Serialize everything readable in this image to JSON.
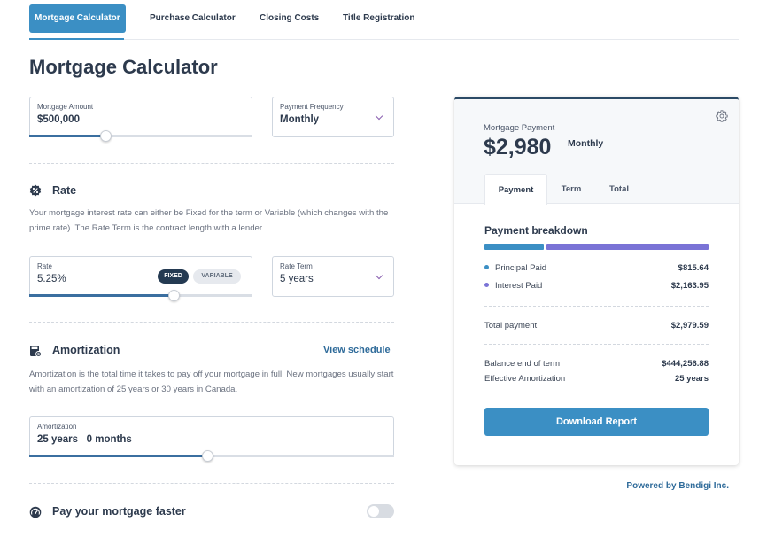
{
  "tabs": [
    "Mortgage Calculator",
    "Purchase Calculator",
    "Closing Costs",
    "Title Registration"
  ],
  "page_title": "Mortgage Calculator",
  "mortgage_amount": {
    "label": "Mortgage Amount",
    "value": "$500,000",
    "slider_fraction": 0.31
  },
  "payment_frequency": {
    "label": "Payment Frequency",
    "value": "Monthly",
    "icon": "chevron-down-icon"
  },
  "rate_section": {
    "title": "Rate",
    "icon": "percent-badge-icon",
    "description": "Your mortgage interest rate can either be Fixed for the term or Variable (which changes with the prime rate). The Rate Term is the contract length with a lender.",
    "rate": {
      "label": "Rate",
      "value": "5.25%",
      "fixed_label": "FIXED",
      "variable_label": "VARIABLE",
      "selected": "FIXED",
      "slider_fraction": 0.65
    },
    "rate_term": {
      "label": "Rate Term",
      "value": "5 years",
      "icon": "chevron-down-icon"
    }
  },
  "amortization_section": {
    "title": "Amortization",
    "icon": "calculator-icon",
    "link": "View schedule",
    "description": "Amortization is the total time it takes to pay off your mortgage in full. New mortgages usually start with an amortization of 25 years or 30 years in Canada.",
    "field": {
      "label": "Amortization",
      "value": "25 years   0 months",
      "slider_fraction": 0.49
    }
  },
  "faster_section": {
    "title": "Pay your mortgage faster",
    "icon": "speedometer-icon",
    "toggle_on": false
  },
  "card": {
    "payment_label": "Mortgage Payment",
    "payment_amount": "$2,980",
    "payment_frequency": "Monthly",
    "tabs": [
      "Payment",
      "Term",
      "Total"
    ],
    "active_tab": "Payment",
    "breakdown_title": "Payment breakdown",
    "rows": [
      {
        "label": "Principal Paid",
        "value": "$815.64",
        "color": "#3b8fc4"
      },
      {
        "label": "Interest Paid",
        "value": "$2,163.95",
        "color": "#7a73d6"
      }
    ],
    "total_label": "Total payment",
    "total_value": "$2,979.59",
    "balance_label": "Balance end of term",
    "balance_value": "$444,256.88",
    "eff_amort_label": "Effective Amortization",
    "eff_amort_value": "25 years",
    "download_label": "Download Report"
  },
  "powered_by": "Powered by Bendigi Inc.",
  "colors": {
    "accent": "#3b8fc4",
    "principal": "#3b8fc4",
    "interest": "#7a73d6",
    "dark": "#2d3a4d"
  }
}
